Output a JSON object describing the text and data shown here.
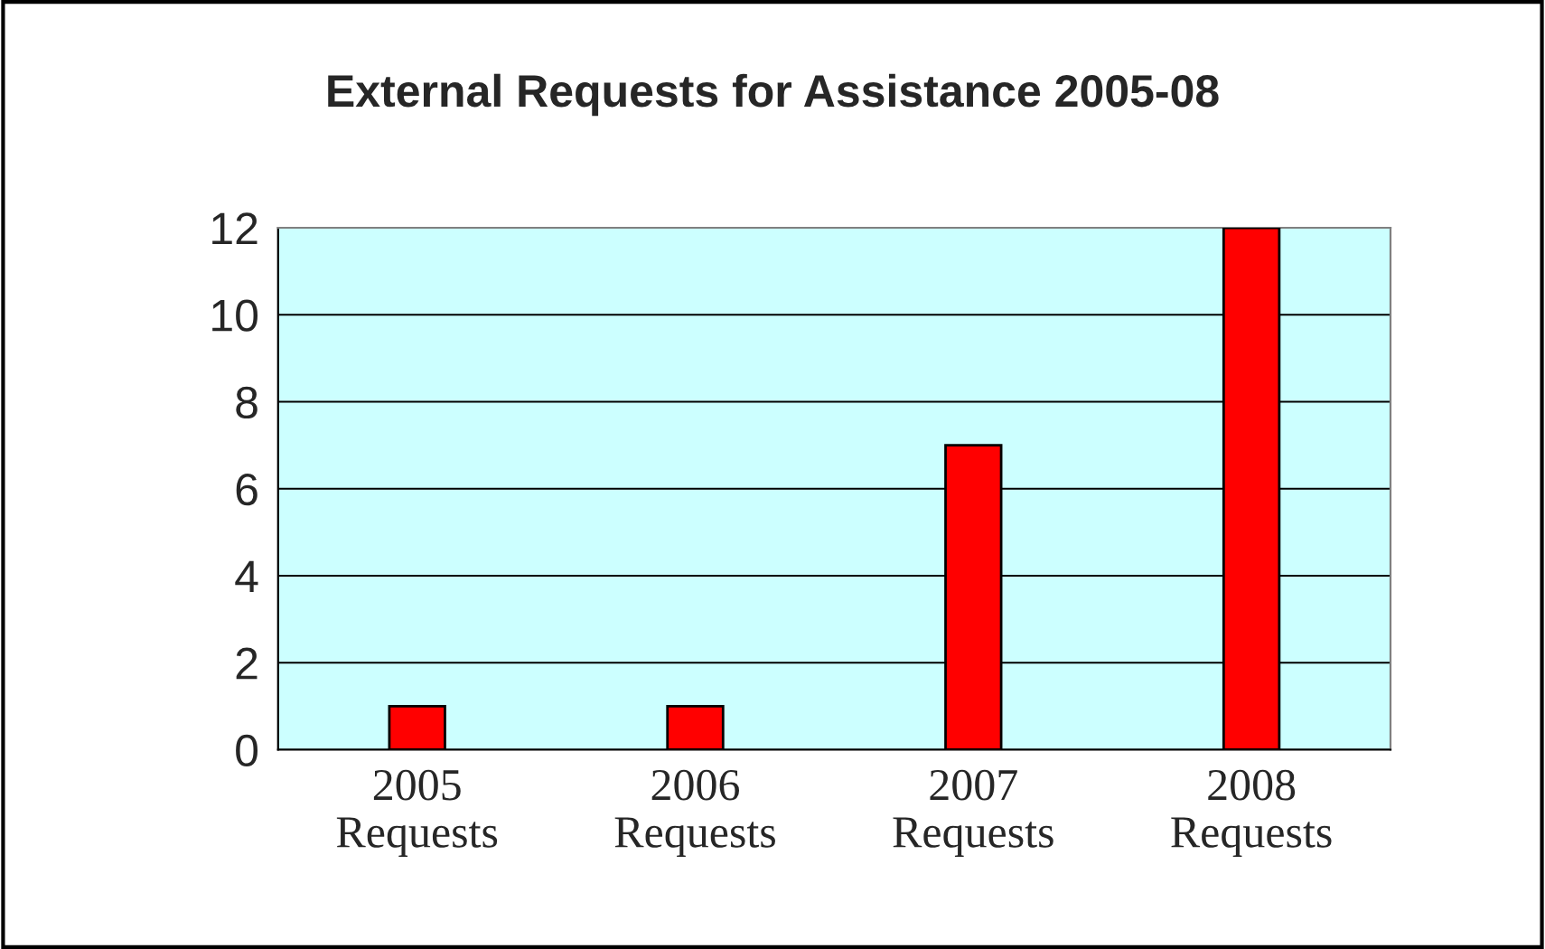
{
  "chart_data": {
    "type": "bar",
    "title": "External Requests for Assistance 2005-08",
    "categories": [
      "2005\nRequests",
      "2006\nRequests",
      "2007\nRequests",
      "2008\nRequests"
    ],
    "values": [
      1,
      1,
      7,
      12
    ],
    "color": "#ff0000",
    "ylim": [
      0,
      12
    ],
    "yticks": [
      0,
      2,
      4,
      6,
      8,
      10,
      12
    ],
    "grid": "y",
    "legend": false
  }
}
